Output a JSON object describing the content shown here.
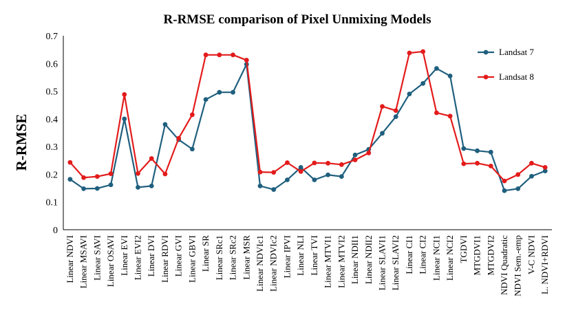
{
  "chart_data": {
    "type": "line",
    "title": "R-RMSE comparison of Pixel Unmixing Models",
    "xlabel": "",
    "ylabel": "R-RMSE",
    "ylim": [
      0,
      0.7
    ],
    "yticks": [
      "0",
      "0.1",
      "0.2",
      "0.3",
      "0.4",
      "0.5",
      "0.6",
      "0.7"
    ],
    "grid": false,
    "legend_position": "top-right",
    "categories": [
      "Linear NDVI",
      "Linear MSAVI",
      "Linear SAVI",
      "Linear OSAVI",
      "Linear EVI",
      "Linear EVI2",
      "Linear DVI",
      "Linear RDVI",
      "Linear GVI",
      "Linear GBVI",
      "Linear SR",
      "Linear SRc1",
      "Linear SRc2",
      "Linear MSR",
      "Linear NDVIc1",
      "Linear NDVIc2",
      "Linear IPVI",
      "Linear NLI",
      "Linear TVI",
      "Linear MTVI1",
      "Linear MTVI2",
      "Linear NDII1",
      "Linear NDII2",
      "Linear SLAVI1",
      "Linear SLAVI2",
      "Linear CI1",
      "Linear CI2",
      "Linear NCI1",
      "Linear NCI2",
      "TGDVI",
      "MTGDVI1",
      "MTGDVI2",
      "NDVI Quadratic",
      "NDVI Sem.-emp",
      "V-C NDVI",
      "L. NDVI+RDVI"
    ],
    "series": [
      {
        "name": "Landsat 7",
        "color": "#1f5f7e",
        "values": [
          0.182,
          0.148,
          0.149,
          0.162,
          0.4,
          0.153,
          0.158,
          0.38,
          0.325,
          0.291,
          0.47,
          0.496,
          0.496,
          0.597,
          0.158,
          0.145,
          0.18,
          0.225,
          0.18,
          0.198,
          0.192,
          0.27,
          0.29,
          0.348,
          0.408,
          0.49,
          0.528,
          0.582,
          0.555,
          0.293,
          0.285,
          0.28,
          0.141,
          0.148,
          0.193,
          0.212
        ]
      },
      {
        "name": "Landsat 8",
        "color": "#e31b1b",
        "values": [
          0.243,
          0.188,
          0.192,
          0.202,
          0.488,
          0.203,
          0.257,
          0.201,
          0.33,
          0.415,
          0.631,
          0.631,
          0.631,
          0.612,
          0.208,
          0.207,
          0.242,
          0.21,
          0.241,
          0.24,
          0.235,
          0.252,
          0.277,
          0.445,
          0.43,
          0.638,
          0.643,
          0.422,
          0.41,
          0.238,
          0.24,
          0.23,
          0.176,
          0.199,
          0.24,
          0.225
        ]
      }
    ]
  }
}
